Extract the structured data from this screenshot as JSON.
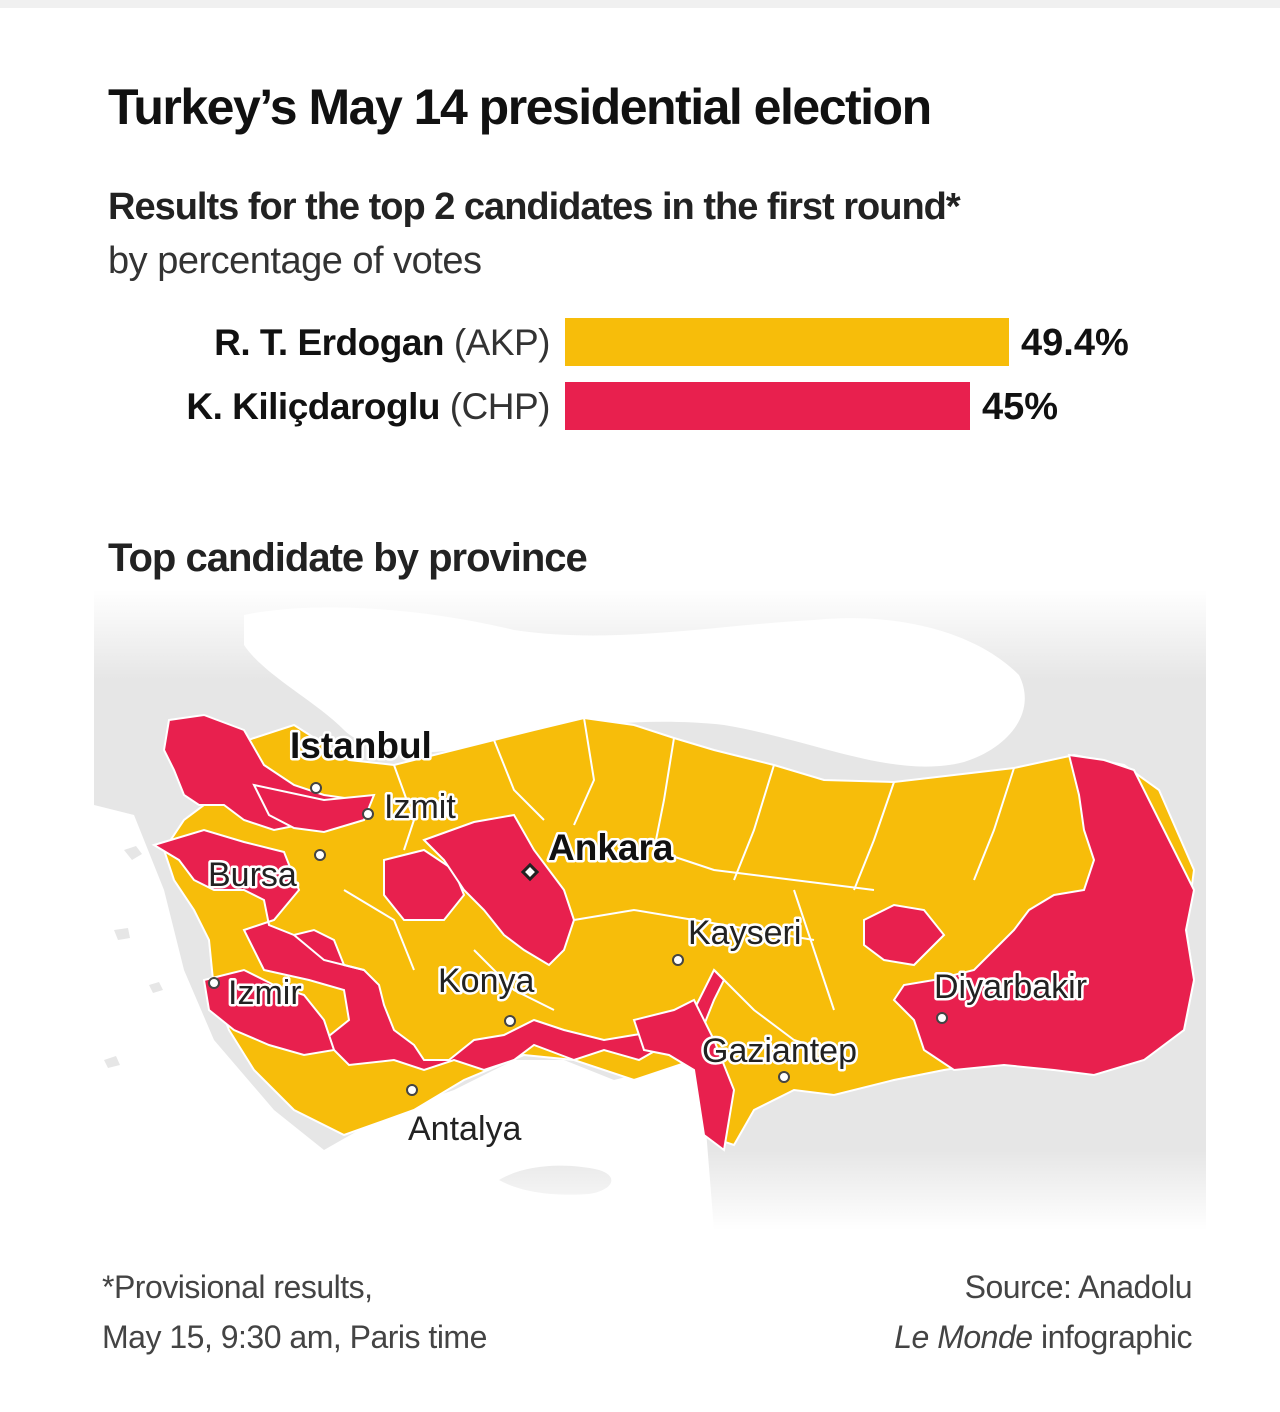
{
  "header": {
    "title": "Turkey’s May 14 presidential election",
    "subtitle": "Results for the top 2 candidates in the first round*",
    "subtitle2": "by percentage of votes"
  },
  "chart_data": [
    {
      "type": "bar",
      "orientation": "horizontal",
      "title": "Turkey’s May 14 presidential election",
      "subtitle": "Results for the top 2 candidates in the first round* by percentage of votes",
      "categories": [
        "R. T. Erdogan (AKP)",
        "K. Kiliçdaroglu (CHP)"
      ],
      "values": [
        49.4,
        45
      ],
      "value_labels": [
        "49.4%",
        "45%"
      ],
      "colors": [
        "#f7bd0a",
        "#e8204e"
      ],
      "xlim": [
        0,
        54.5
      ],
      "grid": false
    },
    {
      "type": "choropleth",
      "title": "Top candidate by province",
      "legend": {
        "R. T. Erdogan (AKP)": "#f7bd0a",
        "K. Kiliçdaroglu (CHP)": "#e8204e"
      },
      "cities": [
        "Istanbul",
        "Izmit",
        "Ankara",
        "Bursa",
        "Kayseri",
        "Izmir",
        "Konya",
        "Diyarbakir",
        "Gaziantep",
        "Antalya"
      ],
      "capitals": [
        "Istanbul",
        "Ankara"
      ]
    }
  ],
  "bars": [
    {
      "name": "R. T. Erdogan",
      "party": "(AKP)",
      "value_label": "49.4%"
    },
    {
      "name": "K. Kiliçdaroglu",
      "party": "(CHP)",
      "value_label": "45%"
    }
  ],
  "map": {
    "title": "Top candidate by province",
    "cities": {
      "istanbul": "Istanbul",
      "izmit": "Izmit",
      "ankara": "Ankara",
      "bursa": "Bursa",
      "kayseri": "Kayseri",
      "izmir": "Izmir",
      "konya": "Konya",
      "diyarbakir": "Diyarbakir",
      "gaziantep": "Gaziantep",
      "antalya": "Antalya"
    }
  },
  "footer": {
    "note_line1": "*Provisional results,",
    "note_line2": "May 15, 9:30 am, Paris time",
    "source_line1": "Source: Anadolu",
    "source_italic": "Le Monde",
    "source_rest": " infographic"
  }
}
